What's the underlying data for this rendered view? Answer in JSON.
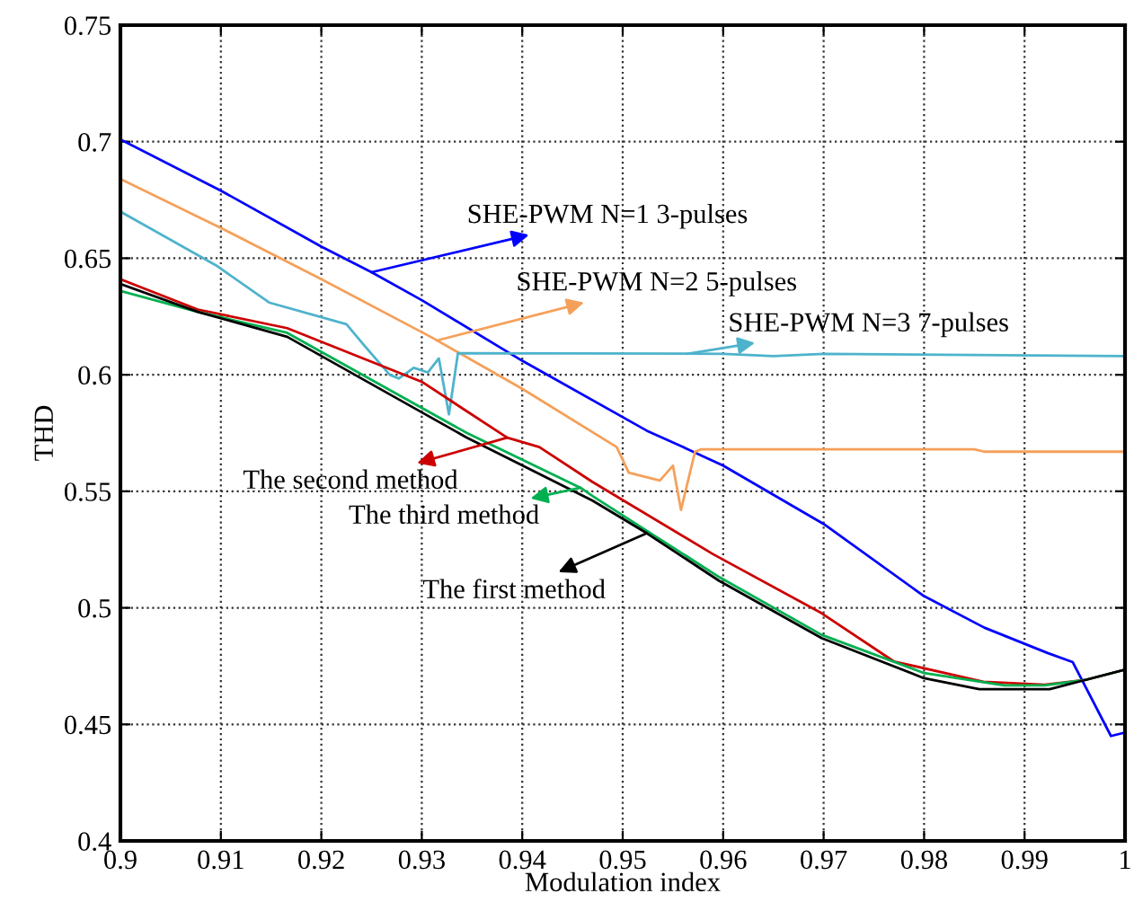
{
  "chart_data": {
    "type": "line",
    "xlabel": "Modulation index",
    "ylabel": "THD",
    "xlim": [
      0.9,
      1
    ],
    "ylim": [
      0.4,
      0.75
    ],
    "xticks": [
      0.9,
      0.91,
      0.92,
      0.93,
      0.94,
      0.95,
      0.96,
      0.97,
      0.98,
      0.99,
      1
    ],
    "yticks": [
      0.4,
      0.45,
      0.5,
      0.55,
      0.6,
      0.65,
      0.7,
      0.75
    ],
    "grid": true,
    "line_style": "solid",
    "marker": "none",
    "series": [
      {
        "color": "#0000ff",
        "x": [
          0.9,
          0.91,
          0.92,
          0.925,
          0.93,
          0.94,
          0.9524,
          0.956,
          0.96,
          0.97,
          0.98,
          0.986,
          0.9923,
          0.9948,
          0.9986,
          1.0
        ],
        "values": [
          0.701,
          0.679,
          0.655,
          0.644,
          0.632,
          0.606,
          0.576,
          0.569,
          0.561,
          0.536,
          0.505,
          0.4915,
          0.4806,
          0.4767,
          0.445,
          0.4465
        ]
      },
      {
        "color": "#f5a05a",
        "x": [
          0.9,
          0.91,
          0.92,
          0.931,
          0.94,
          0.9494,
          0.9506,
          0.9537,
          0.955,
          0.9558,
          0.9572,
          0.9578,
          0.985,
          0.986,
          1.0
        ],
        "values": [
          0.684,
          0.663,
          0.641,
          0.616,
          0.594,
          0.569,
          0.558,
          0.5546,
          0.561,
          0.542,
          0.567,
          0.568,
          0.568,
          0.567,
          0.567
        ]
      },
      {
        "color": "#4eb3cc",
        "x": [
          0.9,
          0.9095,
          0.9148,
          0.9225,
          0.9243,
          0.9268,
          0.9277,
          0.9292,
          0.9306,
          0.9317,
          0.9327,
          0.9336,
          0.96,
          0.965,
          0.97,
          1.0
        ],
        "values": [
          0.67,
          0.647,
          0.631,
          0.6217,
          0.6124,
          0.6,
          0.5984,
          0.603,
          0.601,
          0.607,
          0.583,
          0.6093,
          0.609,
          0.608,
          0.609,
          0.608
        ]
      },
      {
        "color": "#cc0000",
        "x": [
          0.9,
          0.9077,
          0.9166,
          0.93,
          0.9385,
          0.9417,
          0.947,
          0.959,
          0.9698,
          0.977,
          0.9859,
          0.992,
          0.996,
          1.0
        ],
        "values": [
          0.641,
          0.628,
          0.62,
          0.597,
          0.573,
          0.569,
          0.554,
          0.523,
          0.4977,
          0.477,
          0.4683,
          0.467,
          0.469,
          0.4735
        ]
      },
      {
        "color": "#00b050",
        "x": [
          0.9,
          0.9077,
          0.9166,
          0.9345,
          0.9458,
          0.947,
          0.9596,
          0.9698,
          0.98,
          0.988,
          0.992,
          0.996,
          1.0
        ],
        "values": [
          0.636,
          0.627,
          0.618,
          0.575,
          0.5515,
          0.548,
          0.5132,
          0.4884,
          0.472,
          0.4667,
          0.4667,
          0.469,
          0.4735
        ]
      },
      {
        "color": "#000000",
        "x": [
          0.9,
          0.9077,
          0.9166,
          0.9345,
          0.947,
          0.9524,
          0.9596,
          0.9698,
          0.98,
          0.9855,
          0.9925,
          0.996,
          1.0
        ],
        "values": [
          0.639,
          0.627,
          0.6163,
          0.573,
          0.546,
          0.532,
          0.5116,
          0.487,
          0.4698,
          0.4651,
          0.4651,
          0.469,
          0.4735
        ]
      }
    ],
    "annotations": [
      {
        "text": "SHE-PWM N=1 3-pulses",
        "x": 0.925,
        "y": 0.644
      },
      {
        "text": "SHE-PWM N=2 5-pulses",
        "x": 0.9315,
        "y": 0.6147
      },
      {
        "text": "SHE-PWM N=3 7-pulses",
        "x": 0.9564,
        "y": 0.609
      },
      {
        "text": "The second method",
        "x": 0.9385,
        "y": 0.573
      },
      {
        "text": "The third method",
        "x": 0.9458,
        "y": 0.5515
      },
      {
        "text": "The first method",
        "x": 0.9524,
        "y": 0.532
      }
    ]
  }
}
